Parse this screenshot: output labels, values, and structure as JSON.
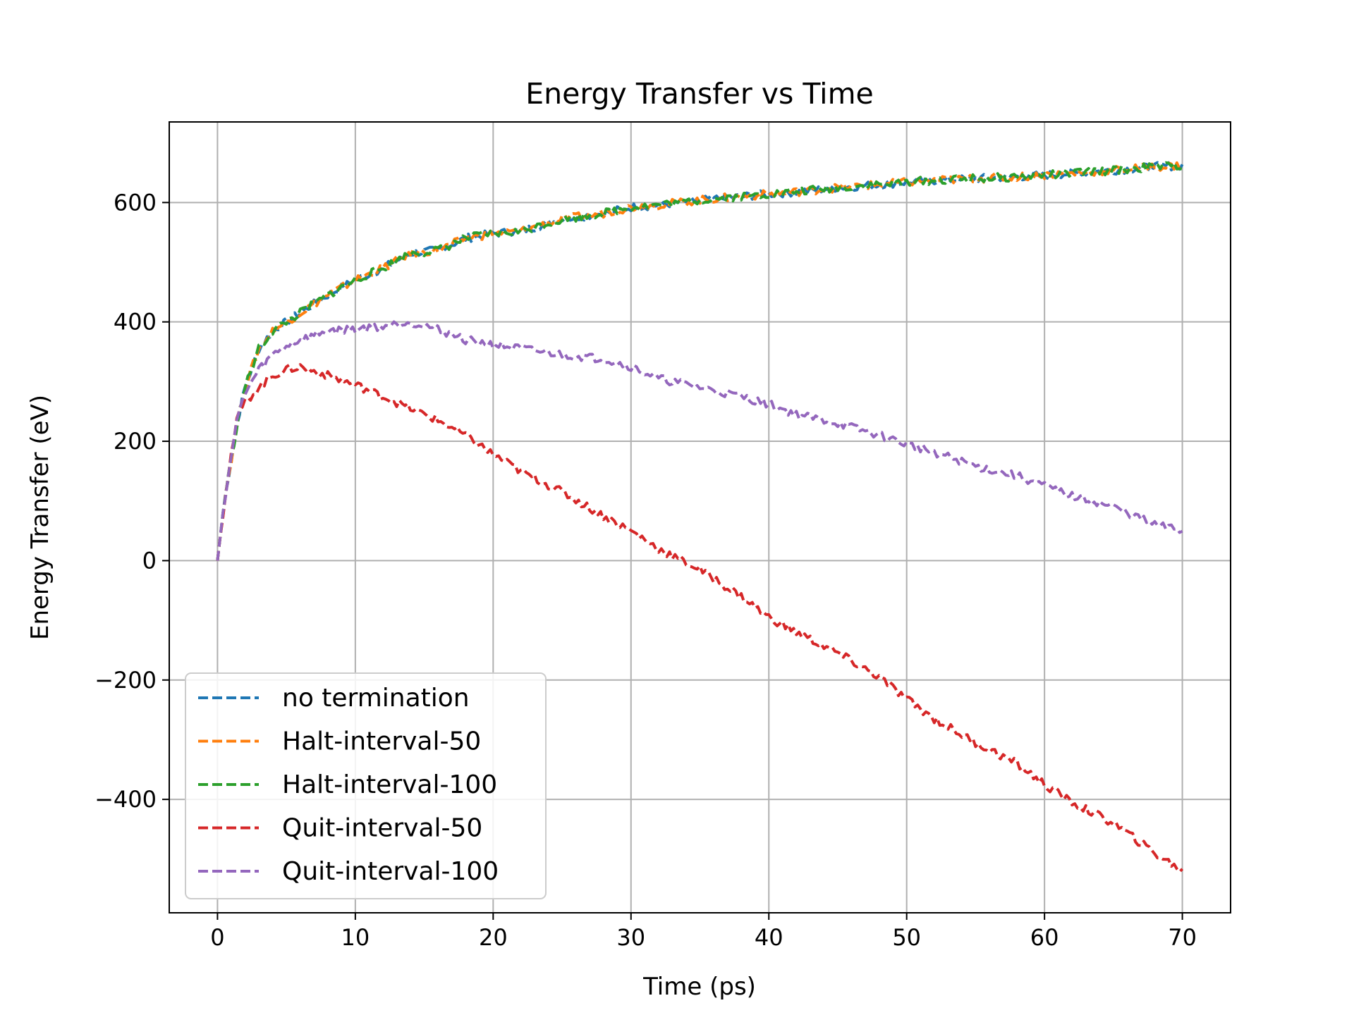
{
  "chart_data": {
    "type": "line",
    "title": "Energy Transfer vs Time",
    "xlabel": "Time (ps)",
    "ylabel": "Energy Transfer (eV)",
    "xlim": [
      -3.5,
      73.5
    ],
    "ylim": [
      -590,
      735
    ],
    "x_ticks": [
      0,
      10,
      20,
      30,
      40,
      50,
      60,
      70
    ],
    "x_tick_labels": [
      "0",
      "10",
      "20",
      "30",
      "40",
      "50",
      "60",
      "70"
    ],
    "y_ticks": [
      -400,
      -200,
      0,
      200,
      400,
      600
    ],
    "y_tick_labels": [
      "−400",
      "−200",
      "0",
      "200",
      "400",
      "600"
    ],
    "grid": true,
    "legend_position": "lower-left",
    "x": [
      0,
      0.5,
      1,
      1.5,
      2,
      3,
      4,
      5,
      6,
      8,
      10,
      12,
      14,
      16,
      18,
      20,
      22,
      25,
      28,
      30,
      32,
      35,
      38,
      40,
      42,
      45,
      48,
      50,
      52,
      55,
      58,
      60,
      62,
      65,
      68,
      70
    ],
    "series": [
      {
        "name": "no termination",
        "color": "#1f77b4",
        "values": [
          0,
          100,
          170,
          240,
          290,
          355,
          385,
          400,
          415,
          445,
          470,
          490,
          515,
          520,
          540,
          548,
          552,
          572,
          582,
          592,
          596,
          604,
          610,
          614,
          618,
          625,
          630,
          634,
          637,
          640,
          643,
          646,
          649,
          654,
          660,
          662
        ]
      },
      {
        "name": "Halt-interval-50",
        "color": "#ff7f0e",
        "values": [
          0,
          100,
          170,
          240,
          290,
          355,
          385,
          400,
          415,
          445,
          470,
          490,
          515,
          520,
          540,
          548,
          552,
          572,
          582,
          592,
          596,
          604,
          610,
          614,
          618,
          625,
          630,
          634,
          637,
          640,
          643,
          646,
          649,
          654,
          660,
          662
        ]
      },
      {
        "name": "Halt-interval-100",
        "color": "#2ca02c",
        "values": [
          0,
          100,
          170,
          240,
          290,
          355,
          385,
          400,
          415,
          445,
          470,
          490,
          515,
          520,
          540,
          548,
          552,
          572,
          582,
          592,
          596,
          604,
          610,
          614,
          618,
          625,
          630,
          634,
          637,
          640,
          643,
          646,
          649,
          654,
          660,
          662
        ]
      },
      {
        "name": "Quit-interval-50",
        "color": "#d62728",
        "values": [
          0,
          100,
          180,
          245,
          265,
          290,
          310,
          320,
          325,
          310,
          295,
          275,
          255,
          235,
          210,
          178,
          150,
          115,
          75,
          50,
          20,
          -15,
          -60,
          -95,
          -120,
          -155,
          -195,
          -232,
          -265,
          -305,
          -340,
          -375,
          -405,
          -440,
          -490,
          -520
        ]
      },
      {
        "name": "Quit-interval-100",
        "color": "#9467bd",
        "values": [
          0,
          100,
          175,
          245,
          280,
          320,
          345,
          360,
          370,
          385,
          388,
          393,
          400,
          388,
          370,
          362,
          355,
          345,
          338,
          325,
          305,
          290,
          275,
          262,
          245,
          230,
          210,
          195,
          182,
          158,
          142,
          125,
          108,
          90,
          60,
          50
        ]
      }
    ]
  }
}
